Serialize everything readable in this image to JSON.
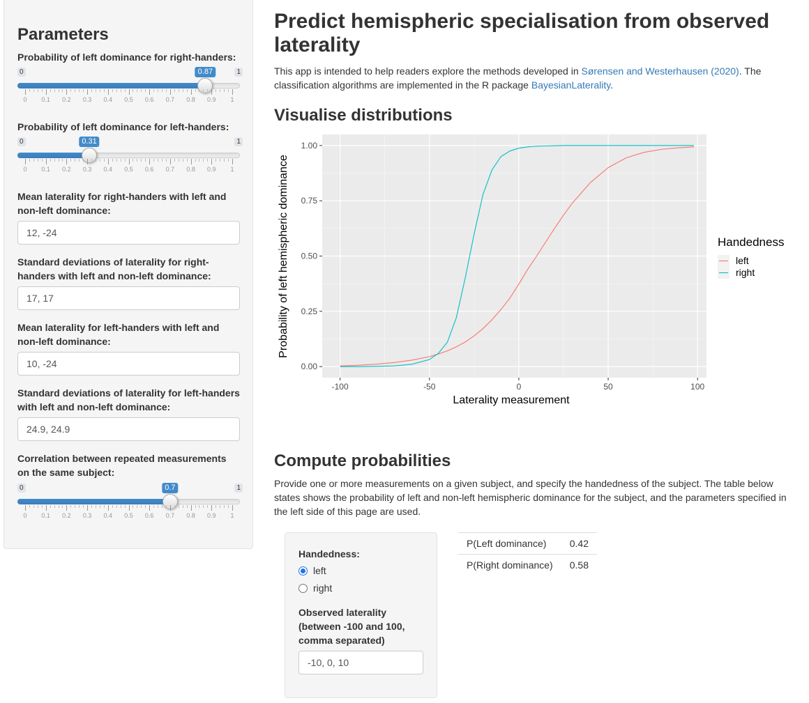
{
  "sidebar": {
    "title": "Parameters",
    "slider_right": {
      "label": "Probability of left dominance for right-handers:",
      "min": 0,
      "max": 1,
      "value": 0.87,
      "min_label": "0",
      "max_label": "1",
      "value_label": "0.87"
    },
    "slider_left": {
      "label": "Probability of left dominance for left-handers:",
      "min": 0,
      "max": 1,
      "value": 0.31,
      "min_label": "0",
      "max_label": "1",
      "value_label": "0.31"
    },
    "slider_corr": {
      "label": "Correlation between repeated measurements on the same subject:",
      "min": 0,
      "max": 1,
      "value": 0.7,
      "min_label": "0",
      "max_label": "1",
      "value_label": "0.7"
    },
    "slider_tick_labels": [
      "0",
      "0.1",
      "0.2",
      "0.3",
      "0.4",
      "0.5",
      "0.6",
      "0.7",
      "0.8",
      "0.9",
      "1"
    ],
    "mean_right": {
      "label": "Mean laterality for right-handers with left and non-left dominance:",
      "value": "12, -24"
    },
    "sd_right": {
      "label": "Standard deviations of laterality for right-handers with left and non-left dominance:",
      "value": "17, 17"
    },
    "mean_left": {
      "label": "Mean laterality for left-handers with left and non-left dominance:",
      "value": "10, -24"
    },
    "sd_left": {
      "label": "Standard deviations of laterality for left-handers with left and non-left dominance:",
      "value": "24.9, 24.9"
    }
  },
  "main": {
    "title": "Predict hemispheric specialisation from observed laterality",
    "intro": {
      "before": "This app is intended to help readers explore the methods developed in ",
      "link1": "Sørensen and Westerhausen (2020)",
      "middle": ". The classification algorithms are implemented in the R package ",
      "link2": "BayesianLaterality",
      "after": "."
    },
    "viz_heading": "Visualise distributions",
    "compute_heading": "Compute probabilities",
    "compute_text": "Provide one or more measurements on a given subject, and specify the handedness of the subject. The table below states shows the probability of left and non-left hemispheric dominance for the subject, and the parameters specified in the left side of this page are used."
  },
  "chart_data": {
    "type": "line",
    "xlabel": "Laterality measurement",
    "ylabel": "Probability of left hemispheric dominance",
    "xlim": [
      -100,
      100
    ],
    "ylim": [
      0,
      1
    ],
    "x_ticks": [
      -100,
      -50,
      0,
      50,
      100
    ],
    "x_tick_labels": [
      "-100",
      "-50",
      "0",
      "50",
      "100"
    ],
    "y_ticks": [
      0,
      0.25,
      0.5,
      0.75,
      1
    ],
    "y_tick_labels": [
      "0.00",
      "0.25",
      "0.50",
      "0.75",
      "1.00"
    ],
    "grid": true,
    "legend_title": "Handedness",
    "legend_position": "right",
    "x": [
      -100,
      -90,
      -80,
      -70,
      -60,
      -50,
      -45,
      -40,
      -35,
      -30,
      -25,
      -20,
      -15,
      -10,
      -5,
      0,
      5,
      10,
      15,
      20,
      25,
      30,
      40,
      50,
      60,
      70,
      80,
      90,
      98
    ],
    "series": [
      {
        "name": "left",
        "color": "#F8766D",
        "values": [
          0.003,
          0.006,
          0.011,
          0.018,
          0.029,
          0.045,
          0.057,
          0.071,
          0.089,
          0.111,
          0.139,
          0.172,
          0.212,
          0.258,
          0.31,
          0.373,
          0.44,
          0.5,
          0.563,
          0.625,
          0.685,
          0.74,
          0.832,
          0.9,
          0.944,
          0.969,
          0.983,
          0.99,
          0.994
        ]
      },
      {
        "name": "right",
        "color": "#00BFC4",
        "values": [
          0.0,
          0.0,
          0.001,
          0.003,
          0.01,
          0.032,
          0.06,
          0.11,
          0.22,
          0.4,
          0.6,
          0.78,
          0.89,
          0.95,
          0.975,
          0.988,
          0.994,
          0.997,
          0.998,
          0.999,
          1.0,
          1.0,
          1.0,
          1.0,
          1.0,
          1.0,
          1.0,
          1.0,
          1.0
        ]
      }
    ]
  },
  "compute_form": {
    "handedness_label": "Handedness:",
    "options": [
      "left",
      "right"
    ],
    "selected": "left",
    "observed_label": "Observed laterality (between -100 and 100, comma separated)",
    "observed_value": "-10, 0, 10"
  },
  "results": [
    {
      "label": "P(Left dominance)",
      "value": "0.42"
    },
    {
      "label": "P(Right dominance)",
      "value": "0.58"
    }
  ]
}
